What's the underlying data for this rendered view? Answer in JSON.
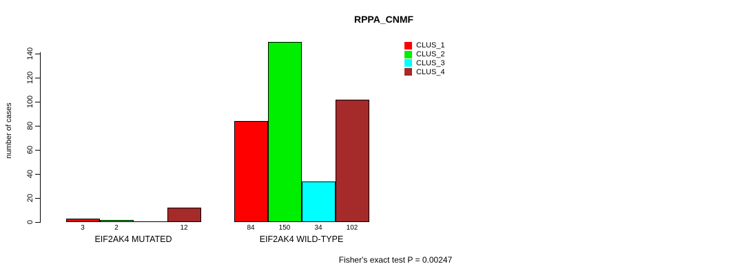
{
  "chart_data": {
    "type": "bar",
    "title": "RPPA_CNMF",
    "ylabel": "number of cases",
    "xlabel": "",
    "ylim": [
      0,
      150
    ],
    "yticks": [
      0,
      20,
      40,
      60,
      80,
      100,
      120,
      140
    ],
    "grid": false,
    "legend_position": "top-right",
    "categories": [
      "EIF2AK4 MUTATED",
      "EIF2AK4 WILD-TYPE"
    ],
    "series": [
      {
        "name": "CLUS_1",
        "color": "#ff0000",
        "values": [
          3,
          84
        ]
      },
      {
        "name": "CLUS_2",
        "color": "#00ee00",
        "values": [
          2,
          150
        ]
      },
      {
        "name": "CLUS_3",
        "color": "#00ffff",
        "values": [
          0,
          34
        ]
      },
      {
        "name": "CLUS_4",
        "color": "#a52a2a",
        "values": [
          12,
          102
        ]
      }
    ],
    "bar_value_labels": [
      [
        "3",
        "2",
        "",
        "12"
      ],
      [
        "84",
        "150",
        "34",
        "102"
      ]
    ],
    "annotation": "Fisher's exact test P = 0.00247"
  }
}
